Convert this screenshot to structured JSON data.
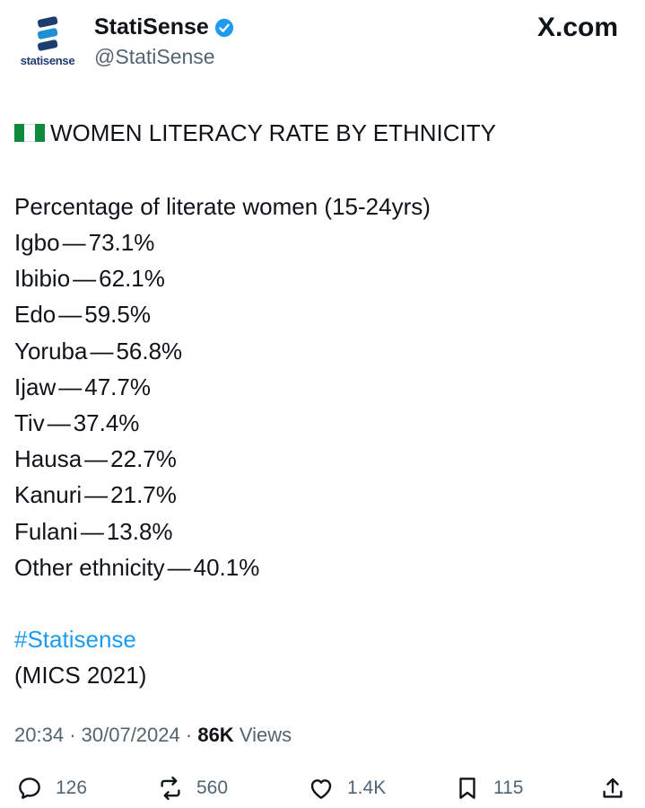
{
  "author": {
    "display_name": "StatiSense",
    "handle": "@StatiSense",
    "logo_text": "statisense",
    "site": "X.com"
  },
  "post": {
    "headline": "WOMEN LITERACY RATE BY ETHNICITY",
    "subhead": "Percentage of literate women (15-24yrs)",
    "rows": [
      {
        "label": "Igbo",
        "value": "73.1%"
      },
      {
        "label": "Ibibio",
        "value": "62.1%"
      },
      {
        "label": "Edo",
        "value": "59.5%"
      },
      {
        "label": "Yoruba",
        "value": "56.8%"
      },
      {
        "label": "Ijaw",
        "value": "47.7%"
      },
      {
        "label": "Tiv",
        "value": "37.4%"
      },
      {
        "label": "Hausa",
        "value": "22.7%"
      },
      {
        "label": "Kanuri",
        "value": "21.7%"
      },
      {
        "label": "Fulani",
        "value": "13.8%"
      },
      {
        "label": "Other ethnicity",
        "value": "40.1%"
      }
    ],
    "separator": "—",
    "hashtag": "#Statisense",
    "source": "(MICS 2021)"
  },
  "meta": {
    "time": "20:34",
    "date": "30/07/2024",
    "views_count": "86K",
    "views_label": "Views"
  },
  "actions": {
    "replies": "126",
    "reposts": "560",
    "likes": "1.4K",
    "bookmarks": "115"
  },
  "colors": {
    "link": "#1d9bf0",
    "text": "#0f1419",
    "muted": "#536471",
    "flag_green": "#0f8a3c"
  }
}
